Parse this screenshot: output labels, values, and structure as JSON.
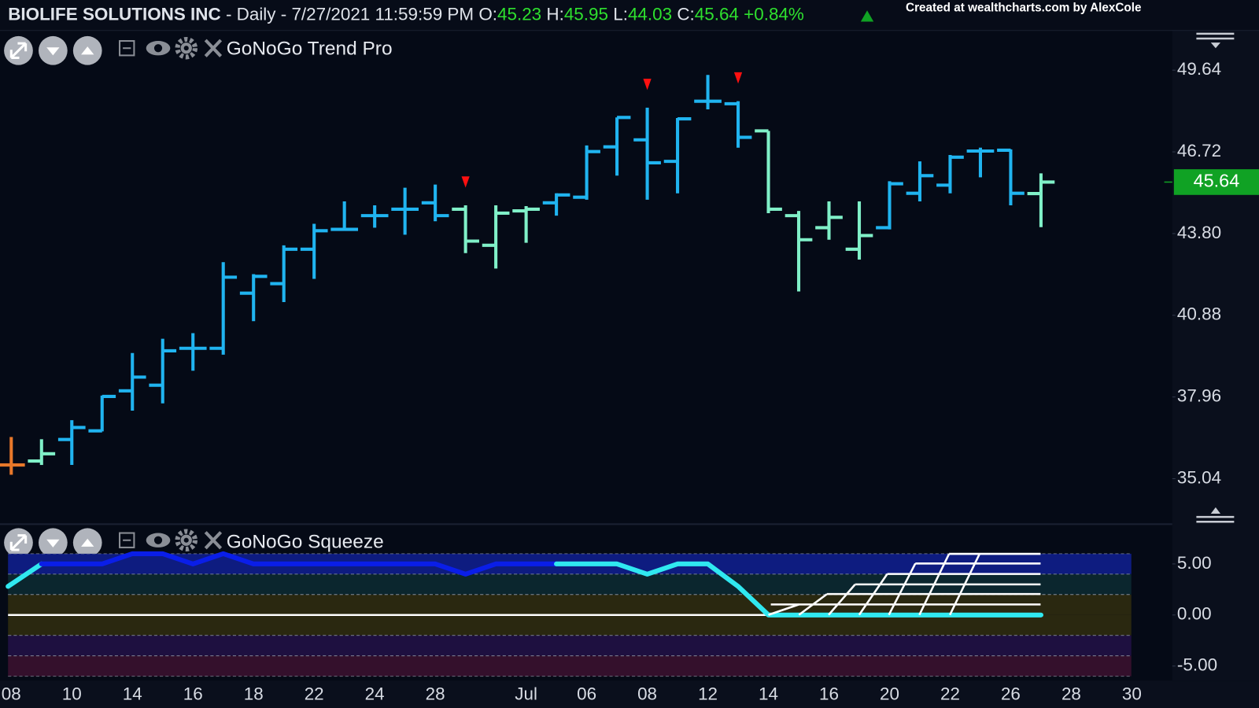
{
  "header": {
    "symbol": "BIOLIFE SOLUTIONS INC",
    "info": "- Daily - 7/27/2021 11:59:59 PM",
    "ohlc_labels": [
      "O:",
      "H:",
      "L:",
      "C:"
    ],
    "change": "+0.84%",
    "credit": "Created at wealthcharts.com by AlexCole"
  },
  "chart_data": [
    {
      "type": "ohlc",
      "title": "GoNoGo Trend Pro",
      "categories": [
        "08",
        null,
        "10",
        null,
        "14",
        null,
        "16",
        null,
        "18",
        null,
        "22",
        null,
        "24",
        null,
        "28",
        null,
        null,
        "Jul",
        null,
        "06",
        null,
        "08",
        null,
        "12",
        null,
        "14",
        null,
        "16",
        null,
        "20",
        null,
        "22",
        null,
        "26",
        null,
        "28",
        null,
        "30"
      ],
      "open": [
        35.53,
        35.67,
        36.44,
        36.75,
        38.18,
        38.38,
        39.7,
        39.7,
        41.67,
        42.01,
        43.24,
        43.95,
        44.44,
        44.67,
        44.9,
        44.67,
        43.38,
        44.61,
        44.9,
        45.1,
        46.9,
        47.15,
        46.38,
        48.53,
        48.44,
        47.47,
        44.44,
        44.01,
        43.24,
        44.01,
        45.24,
        45.53,
        46.75,
        46.78,
        45.23,
        null,
        null,
        null
      ],
      "high": [
        36.53,
        36.45,
        37.13,
        38.01,
        39.53,
        40.04,
        40.24,
        42.78,
        42.35,
        43.38,
        44.15,
        44.95,
        44.81,
        45.44,
        45.55,
        44.81,
        44.81,
        44.78,
        45.24,
        46.95,
        47.95,
        48.3,
        47.93,
        49.47,
        48.53,
        47.47,
        44.61,
        44.95,
        44.95,
        45.67,
        46.38,
        46.61,
        46.87,
        46.81,
        45.95,
        null,
        null,
        null
      ],
      "low": [
        35.18,
        35.53,
        35.53,
        36.73,
        37.47,
        37.73,
        38.9,
        39.47,
        40.67,
        41.35,
        42.18,
        43.9,
        44.01,
        43.76,
        44.24,
        43.1,
        42.55,
        43.47,
        44.44,
        45.01,
        45.87,
        45.01,
        45.24,
        48.24,
        46.87,
        44.53,
        41.73,
        43.58,
        42.87,
        43.95,
        44.95,
        45.24,
        45.81,
        44.81,
        44.03,
        null,
        null,
        null
      ],
      "close": [
        35.53,
        35.93,
        36.87,
        37.98,
        38.67,
        39.61,
        39.7,
        42.24,
        42.27,
        43.24,
        43.9,
        43.95,
        44.44,
        44.67,
        44.44,
        43.53,
        44.53,
        44.67,
        45.18,
        46.73,
        47.95,
        46.33,
        47.9,
        48.53,
        47.24,
        44.67,
        43.58,
        44.38,
        43.73,
        45.58,
        45.87,
        46.53,
        46.75,
        45.24,
        45.64,
        null,
        null,
        null
      ],
      "colors": [
        "#e8782a",
        "#80f0c8",
        "#20b4f0",
        "#20b4f0",
        "#20b4f0",
        "#20b4f0",
        "#20b4f0",
        "#20b4f0",
        "#20b4f0",
        "#20b4f0",
        "#20b4f0",
        "#20b4f0",
        "#20b4f0",
        "#20b4f0",
        "#20b4f0",
        "#80f0c8",
        "#80f0c8",
        "#80f0c8",
        "#20b4f0",
        "#20b4f0",
        "#20b4f0",
        "#20b4f0",
        "#20b4f0",
        "#20b4f0",
        "#20b4f0",
        "#80f0c8",
        "#80f0c8",
        "#80f0c8",
        "#80f0c8",
        "#20b4f0",
        "#20b4f0",
        "#20b4f0",
        "#20b4f0",
        "#20b4f0",
        "#80f0c8",
        null,
        null,
        null
      ],
      "signals": {
        "color": "#ff1010",
        "x": [
          15,
          21,
          24
        ]
      },
      "last_color": "#10a224",
      "ylim": [
        33.5,
        51
      ],
      "yticks": [
        35.04,
        37.96,
        40.88,
        {
          "value": 43.8,
          "label": "43.80"
        },
        46.72,
        49.64
      ]
    },
    {
      "type": "line",
      "title": "GoNoGo Squeeze",
      "values": [
        2.8,
        5.0,
        5.0,
        5.0,
        6.0,
        6.0,
        5.0,
        6.0,
        5.0,
        5.0,
        5.0,
        5.0,
        5.0,
        5.0,
        5.0,
        4.0,
        5.0,
        5.0,
        5.0,
        5.0,
        5.0,
        4.0,
        5.0,
        5.0,
        2.8,
        0,
        0,
        0,
        0,
        0,
        0,
        0,
        0,
        0,
        0,
        null,
        null,
        null
      ],
      "colors": [
        "#30e8f0",
        "#30e8f0",
        "#0a1ee8",
        "#0a1ee8",
        "#0a1ee8",
        "#0a1ee8",
        "#0a1ee8",
        "#0a1ee8",
        "#0a1ee8",
        "#0a1ee8",
        "#0a1ee8",
        "#0a1ee8",
        "#0a1ee8",
        "#0a1ee8",
        "#0a1ee8",
        "#0a1ee8",
        "#0a1ee8",
        "#0a1ee8",
        "#0a1ee8",
        "#30e8f0",
        "#30e8f0",
        "#30e8f0",
        "#30e8f0",
        "#30e8f0",
        "#30e8f0",
        "#30e8f0",
        "#30e8f0",
        "#30e8f0",
        "#30e8f0",
        "#30e8f0",
        "#30e8f0",
        "#30e8f0",
        "#30e8f0",
        "#30e8f0",
        "#30e8f0",
        null,
        null,
        null
      ],
      "zones": [
        {
          "from": 4,
          "to": 6,
          "color": "#0e1c80"
        },
        {
          "from": 2,
          "to": 4,
          "color": "#0b262e"
        },
        {
          "from": 0,
          "to": 2,
          "color": "#2a2810"
        },
        {
          "from": -2,
          "to": 0,
          "color": "#2a2810"
        },
        {
          "from": -4,
          "to": -2,
          "color": "#1e1040"
        },
        {
          "from": -6,
          "to": -4,
          "color": "#34102c"
        }
      ],
      "zero_line": true,
      "ylim": [
        -6.2,
        6.3
      ],
      "yticks": [
        {
          "value": 5,
          "label": "5.00"
        },
        {
          "value": 0,
          "label": "0.00"
        },
        {
          "value": -5,
          "label": "-5.00"
        }
      ]
    }
  ]
}
